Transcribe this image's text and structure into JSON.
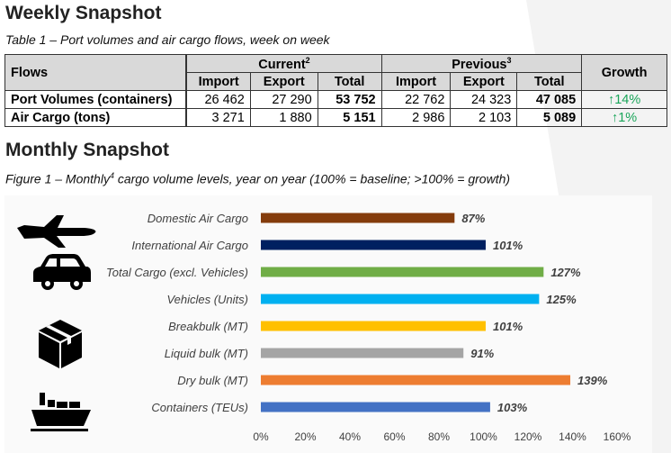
{
  "weekly": {
    "title": "Weekly Snapshot",
    "caption": "Table 1 – Port volumes and air cargo flows, week on week",
    "headers": {
      "flows": "Flows",
      "current": "Current",
      "current_note": "2",
      "previous": "Previous",
      "previous_note": "3",
      "growth": "Growth",
      "import": "Import",
      "export": "Export",
      "total": "Total"
    },
    "rows": [
      {
        "flow": "Port Volumes (containers)",
        "cur_import": "26 462",
        "cur_export": "27 290",
        "cur_total": "53 752",
        "prev_import": "22 762",
        "prev_export": "24 323",
        "prev_total": "47 085",
        "growth": "↑14%"
      },
      {
        "flow": "Air Cargo (tons)",
        "cur_import": "3 271",
        "cur_export": "1 880",
        "cur_total": "5 151",
        "prev_import": "2 986",
        "prev_export": "2 103",
        "prev_total": "5 089",
        "growth": "↑1%"
      }
    ]
  },
  "monthly": {
    "title": "Monthly Snapshot",
    "caption_before": "Figure 1 – Monthly",
    "caption_note": "4",
    "caption_after": " cargo volume levels, year on year (100% = baseline; >100% = growth)"
  },
  "icons": [
    "airplane-icon",
    "car-icon",
    "box-icon",
    "ship-icon"
  ],
  "chart_data": {
    "type": "bar",
    "orientation": "horizontal",
    "categories": [
      "Domestic Air Cargo",
      "International Air Cargo",
      "Total Cargo (excl. Vehicles)",
      "Vehicles (Units)",
      "Breakbulk (MT)",
      "Liquid bulk (MT)",
      "Dry bulk (MT)",
      "Containers (TEUs)"
    ],
    "values": [
      87,
      101,
      127,
      125,
      101,
      91,
      139,
      103
    ],
    "data_labels": [
      "87%",
      "101%",
      "127%",
      "125%",
      "101%",
      "91%",
      "139%",
      "103%"
    ],
    "colors": [
      "#843c0c",
      "#002060",
      "#70ad47",
      "#00b0f0",
      "#ffc000",
      "#a5a5a5",
      "#ed7d31",
      "#4472c4"
    ],
    "xlim": [
      0,
      160
    ],
    "xticks": [
      "0%",
      "20%",
      "40%",
      "60%",
      "80%",
      "100%",
      "120%",
      "140%",
      "160%"
    ],
    "grid": false,
    "legend": "none"
  }
}
